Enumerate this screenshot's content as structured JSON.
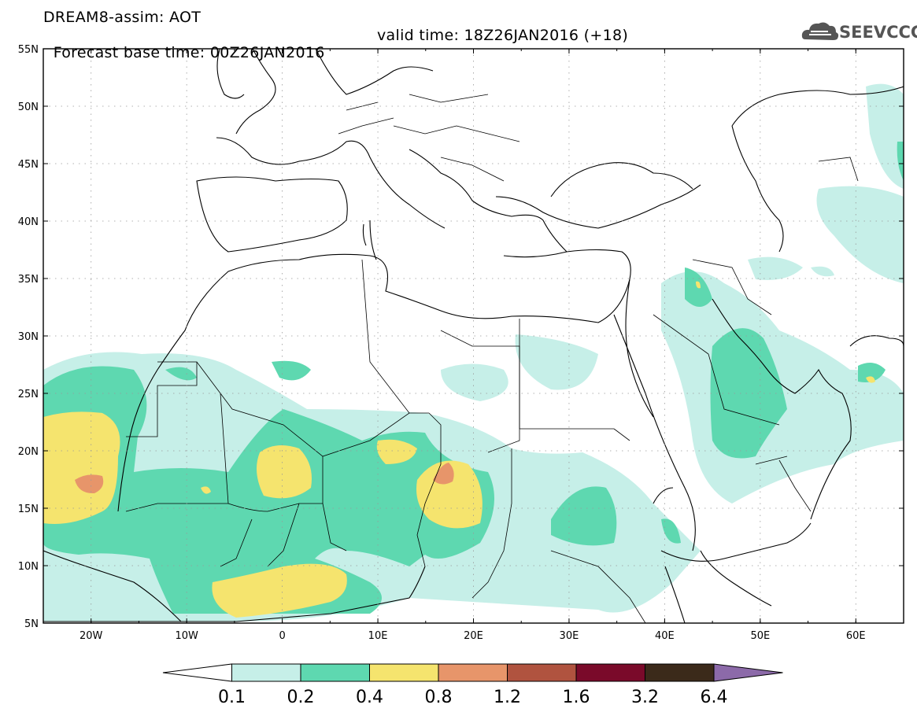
{
  "header": {
    "line1": "DREAM8-assim: AOT",
    "base_time": "Forecast base time: 00Z26JAN2016",
    "valid_time": "valid time: 18Z26JAN2016 (+18)"
  },
  "logo": {
    "text": "SEEVCCC",
    "icon": "cloud-icon"
  },
  "map": {
    "lat_labels": [
      "55N",
      "50N",
      "45N",
      "40N",
      "35N",
      "30N",
      "25N",
      "20N",
      "15N",
      "10N",
      "5N"
    ],
    "lon_labels": [
      "20W",
      "10W",
      "0",
      "10E",
      "20E",
      "30E",
      "40E",
      "50E",
      "60E"
    ],
    "lat_range": [
      5,
      55
    ],
    "lon_range": [
      -25,
      65
    ],
    "grid": "dotted"
  },
  "colorbar": {
    "levels": [
      "0.1",
      "0.2",
      "0.4",
      "0.8",
      "1.2",
      "1.6",
      "3.2",
      "6.4"
    ],
    "colors": [
      "#ffffff",
      "#c6efe8",
      "#5ed8b0",
      "#f5e46e",
      "#e7956a",
      "#b0533f",
      "#7a0a2a",
      "#3b2a1a",
      "#8c6aa9"
    ]
  }
}
